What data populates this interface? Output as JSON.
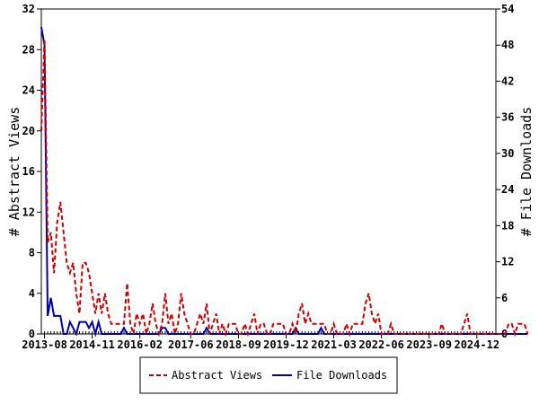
{
  "chart_data": {
    "type": "line",
    "xlabel": "",
    "ylabel": "# Abstract Views",
    "y2label": "# File Downloads",
    "ylim": [
      0,
      32
    ],
    "y2lim": [
      0,
      54
    ],
    "yticks": [
      0,
      4,
      8,
      12,
      16,
      20,
      24,
      28,
      32
    ],
    "y2ticks": [
      0,
      6,
      12,
      18,
      24,
      30,
      36,
      42,
      48,
      54
    ],
    "x_start_month": "2013-07",
    "x_end_month": "2025-06",
    "x_tick_labels": [
      "2013-08",
      "2014-11",
      "2016-02",
      "2017-06",
      "2018-09",
      "2019-12",
      "2021-03",
      "2022-06",
      "2023-09",
      "2024-12"
    ],
    "legend_position": "bottom",
    "grid": false,
    "series": [
      {
        "name": "Abstract Views",
        "axis": "left",
        "color": "#cc0000",
        "dash": "dashed",
        "values": [
          20,
          29,
          9,
          10,
          6,
          11,
          13,
          10,
          7,
          6,
          7,
          4,
          2,
          7,
          7,
          6,
          4,
          2,
          4,
          2,
          4,
          2,
          1,
          1,
          1,
          1,
          1,
          5,
          1,
          0,
          2,
          1,
          2,
          0,
          1,
          3,
          1,
          0,
          1,
          4,
          1,
          2,
          0,
          1,
          4,
          2,
          1,
          0,
          0,
          1,
          2,
          1,
          3,
          0,
          1,
          2,
          0,
          1,
          0,
          1,
          1,
          1,
          0,
          0,
          1,
          0,
          1,
          2,
          0,
          1,
          1,
          0,
          0,
          1,
          1,
          1,
          1,
          0,
          0,
          1,
          0,
          2,
          3,
          1,
          2,
          1,
          1,
          1,
          1,
          1,
          0,
          0,
          1,
          0,
          0,
          0,
          1,
          0,
          1,
          1,
          1,
          1,
          3,
          4,
          2,
          1,
          2,
          0,
          0,
          0,
          1,
          0,
          0,
          0,
          0,
          0,
          0,
          0,
          0,
          0,
          0,
          0,
          0,
          0,
          0,
          0,
          1,
          0,
          0,
          0,
          0,
          0,
          0,
          1,
          2,
          0,
          0,
          0,
          0,
          0,
          0,
          0,
          0,
          0,
          0,
          0,
          0,
          1,
          1,
          0,
          1,
          1,
          1,
          0
        ]
      },
      {
        "name": "File Downloads",
        "axis": "right",
        "color": "#0000aa",
        "dash": "solid",
        "values": [
          51,
          48,
          3,
          6,
          3,
          3,
          3,
          0,
          0,
          2,
          1,
          0,
          2,
          2,
          2,
          1,
          2,
          0,
          2,
          0,
          0,
          0,
          0,
          0,
          0,
          0,
          1,
          0,
          0,
          0,
          0,
          0,
          0,
          0,
          0,
          0,
          0,
          0,
          1,
          1,
          0,
          0,
          0,
          0,
          0,
          0,
          0,
          0,
          0,
          0,
          0,
          0,
          1,
          0,
          0,
          0,
          0,
          0,
          0,
          0,
          0,
          0,
          0,
          0,
          0,
          0,
          0,
          0,
          0,
          0,
          0,
          0,
          0,
          0,
          0,
          0,
          0,
          0,
          0,
          0,
          1,
          0,
          0,
          0,
          0,
          0,
          0,
          0,
          1,
          0,
          0,
          0,
          0,
          0,
          0,
          0,
          0,
          0,
          0,
          0,
          0,
          0,
          0,
          0,
          0,
          0,
          0,
          0,
          0,
          0,
          0,
          0,
          0,
          0,
          0,
          0,
          0,
          0,
          0,
          0,
          0,
          0,
          0,
          0,
          0,
          0,
          0,
          0,
          0,
          0,
          0,
          0,
          0,
          0,
          0,
          0,
          0,
          0,
          0,
          0,
          0,
          0,
          0,
          0,
          0,
          0,
          0,
          0,
          0,
          0,
          0,
          0,
          0,
          0
        ]
      }
    ]
  }
}
